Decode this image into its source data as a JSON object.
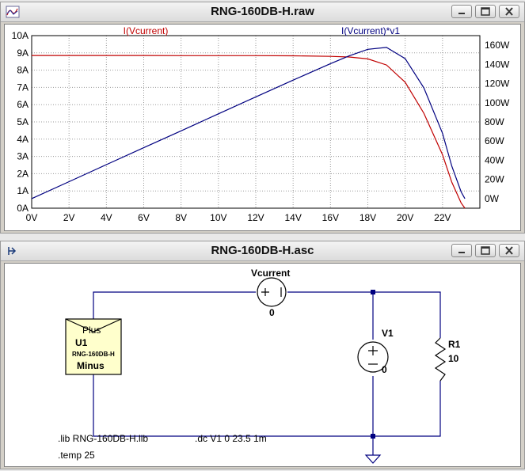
{
  "plot_window": {
    "title": "RNG-160DB-H.raw",
    "icon": "waveform-viewer-icon"
  },
  "schematic_window": {
    "title": "RNG-160DB-H.asc",
    "icon": "schematic-editor-icon"
  },
  "window_controls": {
    "minimize": "minimize-icon",
    "maximize": "maximize-icon",
    "close": "close-icon"
  },
  "chart_data": {
    "type": "line",
    "x": [
      0,
      2,
      4,
      6,
      8,
      10,
      12,
      14,
      16,
      17,
      18,
      19,
      20,
      21,
      22,
      22.5,
      23,
      23.2
    ],
    "xlim": [
      0,
      24
    ],
    "x_ticks": [
      "0V",
      "2V",
      "4V",
      "6V",
      "8V",
      "10V",
      "12V",
      "14V",
      "16V",
      "18V",
      "20V",
      "22V"
    ],
    "left_axis": {
      "ticks": [
        "0A",
        "1A",
        "2A",
        "3A",
        "4A",
        "5A",
        "6A",
        "7A",
        "8A",
        "9A",
        "10A"
      ],
      "ylim": [
        0,
        10
      ]
    },
    "right_axis": {
      "ticks": [
        "0W",
        "20W",
        "40W",
        "60W",
        "80W",
        "100W",
        "120W",
        "140W",
        "160W"
      ],
      "ylim": [
        -10,
        170
      ]
    },
    "series": [
      {
        "name": "I(Vcurrent)",
        "axis": "left",
        "color": "#c00000",
        "values": [
          8.85,
          8.85,
          8.85,
          8.85,
          8.84,
          8.84,
          8.84,
          8.83,
          8.8,
          8.76,
          8.65,
          8.3,
          7.3,
          5.5,
          3.1,
          1.5,
          0.3,
          0
        ]
      },
      {
        "name": "I(Vcurrent)*v1",
        "axis": "right",
        "color": "#000080",
        "values": [
          0,
          17.7,
          35.4,
          53.1,
          70.7,
          88.4,
          106.1,
          123.6,
          140.8,
          148.9,
          155.7,
          157.7,
          146,
          115.5,
          68.2,
          33.8,
          6.9,
          0
        ]
      }
    ],
    "grid": true,
    "legend": "top"
  },
  "schematic": {
    "source_name": "Vcurrent",
    "source_value": "0",
    "v1_name": "V1",
    "v1_value": "0",
    "r1_name": "R1",
    "r1_value": "10",
    "u1_label": "U1",
    "u1_plus": "Plus",
    "u1_minus": "Minus",
    "u1_model": "RNG-160DB-H",
    "directives": {
      "lib": ".lib RNG-160DB-H.lib",
      "dc": ".dc V1 0 23.5 1m",
      "temp": ".temp 25"
    }
  }
}
